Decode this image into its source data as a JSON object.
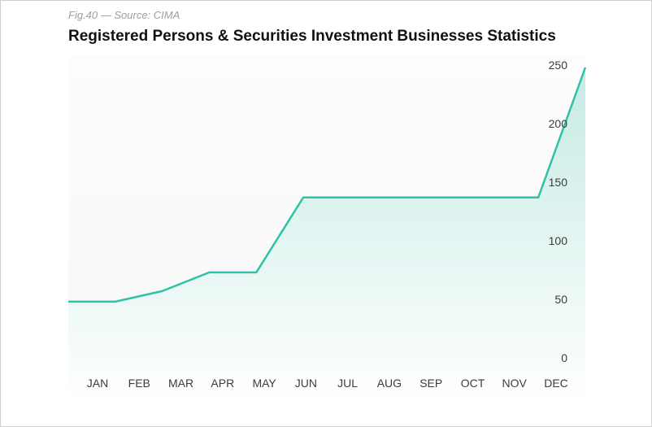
{
  "caption": "Fig.40 — Source: CIMA",
  "colors": {
    "line": "#2fc2a9",
    "fill_top": "#c5eae3",
    "fill_bottom": "#ffffff",
    "text": "#3c3c3c"
  },
  "chart_data": {
    "type": "area",
    "title": "Registered Persons & Securities Investment Businesses Statistics",
    "xlabel": "",
    "ylabel": "",
    "categories": [
      "JAN",
      "FEB",
      "MAR",
      "APR",
      "MAY",
      "JUN",
      "JUL",
      "AUG",
      "SEP",
      "OCT",
      "NOV",
      "DEC"
    ],
    "values": [
      48,
      48,
      57,
      73,
      73,
      137,
      137,
      137,
      137,
      137,
      137,
      248
    ],
    "ylim": [
      0,
      250
    ],
    "yticks": [
      0,
      50,
      100,
      150,
      200,
      250
    ],
    "y_axis_position": "right",
    "grid": false,
    "legend": "none"
  }
}
